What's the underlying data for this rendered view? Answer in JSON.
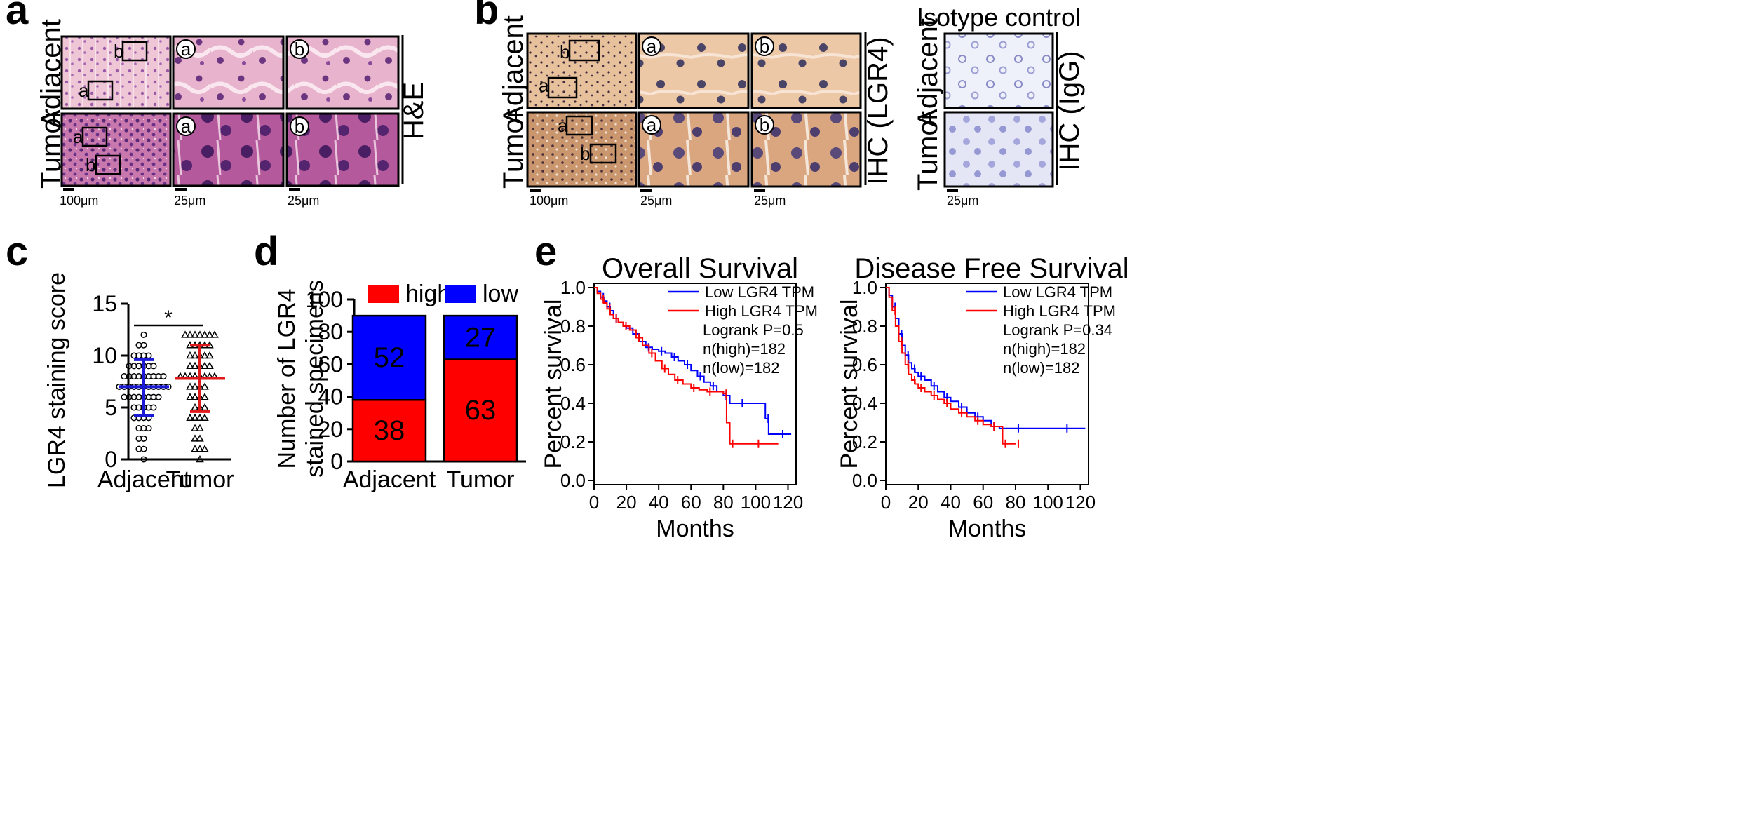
{
  "panels": {
    "a": {
      "label": "a",
      "rows": [
        "Adjacent",
        "Tumor"
      ],
      "stain": "H&E",
      "box_labels": [
        "a",
        "b"
      ],
      "zoom_labels": [
        "a",
        "b"
      ],
      "scale_bars": [
        "100μm",
        "25μm",
        "25μm"
      ],
      "colors": {
        "tissue_light": "#efc6d6",
        "tissue_mid": "#e3a6c2",
        "nuclei": "#7a3a8c",
        "tumor_dark": "#b85a98"
      }
    },
    "b": {
      "label": "b",
      "rows": [
        "Adjacent",
        "Tumor"
      ],
      "stain": "IHC (LGR4)",
      "box_labels": [
        "a",
        "b"
      ],
      "zoom_labels": [
        "a",
        "b"
      ],
      "scale_bars": [
        "100μm",
        "25μm",
        "25μm"
      ],
      "isotype": {
        "title": "Isotype control",
        "rows": [
          "Adjacent",
          "Tumor"
        ],
        "stain": "IHC (IgG)",
        "scale_bar": "25μm"
      },
      "colors": {
        "ihc_light": "#f1d4b9",
        "ihc_dark": "#d6a77c",
        "nuclei": "#4a4466",
        "igg": "#eef0fa"
      }
    },
    "c": {
      "label": "c",
      "significance": "*"
    },
    "d": {
      "label": "d",
      "legend": [
        "high",
        "low"
      ]
    },
    "e": {
      "label": "e"
    }
  },
  "chart_data": [
    {
      "id": "c",
      "type": "scatter",
      "title": "",
      "xlabel": "",
      "ylabel": "LGR4 staining score",
      "categories": [
        "Adjacent",
        "Tumor"
      ],
      "ylim": [
        0,
        15
      ],
      "yticks": [
        0,
        5,
        10,
        15
      ],
      "series": [
        {
          "name": "Adjacent",
          "marker": "circle",
          "color": "#1a1ad6",
          "mean": 7,
          "sd_low": 4.2,
          "sd_high": 9.6,
          "values": [
            0,
            1,
            1,
            2,
            2,
            3,
            3,
            3,
            4,
            4,
            4,
            4,
            5,
            5,
            5,
            5,
            5,
            6,
            6,
            6,
            6,
            6,
            6,
            6,
            6,
            7,
            7,
            7,
            7,
            7,
            7,
            7,
            7,
            7,
            7,
            7,
            8,
            8,
            8,
            8,
            8,
            8,
            8,
            8,
            8,
            9,
            9,
            9,
            9,
            9,
            9,
            10,
            10,
            10,
            10,
            11,
            11,
            12
          ]
        },
        {
          "name": "Tumor",
          "marker": "triangle",
          "color": "#e01a1a",
          "mean": 7.8,
          "sd_low": 4.6,
          "sd_high": 11.0,
          "values": [
            0,
            1,
            1,
            1,
            2,
            2,
            3,
            3,
            4,
            4,
            4,
            4,
            5,
            5,
            5,
            6,
            6,
            6,
            6,
            7,
            7,
            7,
            7,
            8,
            8,
            8,
            8,
            8,
            8,
            8,
            8,
            9,
            9,
            9,
            9,
            9,
            10,
            10,
            10,
            10,
            10,
            11,
            11,
            11,
            11,
            11,
            12,
            12,
            12,
            12,
            12,
            12,
            12
          ]
        }
      ]
    },
    {
      "id": "d",
      "type": "bar",
      "title": "",
      "xlabel": "",
      "ylabel": "Number of LGR4 stained specimens",
      "ylabel_lines": [
        "Number of LGR4",
        "stained specimens"
      ],
      "categories": [
        "Adjacent",
        "Tumor"
      ],
      "ylim": [
        0,
        100
      ],
      "yticks": [
        0,
        20,
        40,
        60,
        80,
        100
      ],
      "series": [
        {
          "name": "high",
          "color": "#ff0000",
          "values": [
            38,
            63
          ]
        },
        {
          "name": "low",
          "color": "#0000ff",
          "values": [
            52,
            27
          ]
        }
      ]
    },
    {
      "id": "e1",
      "type": "line",
      "title": "Overall Survival",
      "xlabel": "Months",
      "ylabel": "Percent survival",
      "xlim": [
        0,
        125
      ],
      "ylim": [
        0,
        1.0
      ],
      "xticks": [
        0,
        20,
        40,
        60,
        80,
        100,
        120
      ],
      "yticks": [
        0.0,
        0.2,
        0.4,
        0.6,
        0.8,
        1.0
      ],
      "legend": [
        "Low LGR4 TPM",
        "High LGR4 TPM"
      ],
      "annotations": [
        "Logrank P=0.5",
        "n(high)=182",
        "n(low)=182"
      ],
      "series": [
        {
          "name": "Low LGR4 TPM",
          "color": "#0000ff",
          "x": [
            0,
            2,
            4,
            6,
            8,
            10,
            12,
            15,
            18,
            20,
            24,
            28,
            32,
            36,
            40,
            44,
            48,
            52,
            56,
            60,
            64,
            68,
            72,
            76,
            80,
            84,
            90,
            100,
            106,
            108,
            115,
            122
          ],
          "y": [
            1.0,
            0.98,
            0.95,
            0.93,
            0.9,
            0.88,
            0.84,
            0.82,
            0.8,
            0.79,
            0.76,
            0.72,
            0.69,
            0.68,
            0.67,
            0.66,
            0.64,
            0.62,
            0.6,
            0.57,
            0.54,
            0.51,
            0.49,
            0.46,
            0.44,
            0.4,
            0.4,
            0.4,
            0.32,
            0.24,
            0.24,
            0.24
          ]
        },
        {
          "name": "High LGR4 TPM",
          "color": "#ff0000",
          "x": [
            0,
            2,
            4,
            6,
            8,
            10,
            12,
            15,
            18,
            22,
            26,
            30,
            34,
            38,
            42,
            46,
            50,
            55,
            60,
            65,
            70,
            75,
            80,
            82,
            84,
            90,
            100,
            114
          ],
          "y": [
            1.0,
            0.97,
            0.94,
            0.92,
            0.89,
            0.86,
            0.84,
            0.82,
            0.8,
            0.78,
            0.74,
            0.7,
            0.66,
            0.62,
            0.58,
            0.55,
            0.52,
            0.5,
            0.48,
            0.47,
            0.46,
            0.46,
            0.45,
            0.3,
            0.19,
            0.19,
            0.19,
            0.19
          ]
        }
      ]
    },
    {
      "id": "e2",
      "type": "line",
      "title": "Disease Free Survival",
      "xlabel": "Months",
      "ylabel": "Percent survival",
      "xlim": [
        0,
        125
      ],
      "ylim": [
        0,
        1.0
      ],
      "xticks": [
        0,
        20,
        40,
        60,
        80,
        100,
        120
      ],
      "yticks": [
        0.0,
        0.2,
        0.4,
        0.6,
        0.8,
        1.0
      ],
      "legend": [
        "Low LGR4 TPM",
        "High LGR4 TPM"
      ],
      "annotations": [
        "Logrank P=0.34",
        "n(high)=182",
        "n(low)=182"
      ],
      "series": [
        {
          "name": "Low LGR4 TPM",
          "color": "#0000ff",
          "x": [
            0,
            2,
            4,
            6,
            8,
            10,
            12,
            14,
            16,
            18,
            20,
            24,
            28,
            32,
            36,
            40,
            45,
            50,
            55,
            60,
            65,
            70,
            80,
            100,
            110,
            123
          ],
          "y": [
            1.0,
            0.96,
            0.9,
            0.84,
            0.76,
            0.7,
            0.65,
            0.61,
            0.58,
            0.56,
            0.54,
            0.52,
            0.49,
            0.46,
            0.43,
            0.41,
            0.38,
            0.35,
            0.33,
            0.31,
            0.28,
            0.27,
            0.27,
            0.27,
            0.27,
            0.27
          ]
        },
        {
          "name": "High LGR4 TPM",
          "color": "#ff0000",
          "x": [
            0,
            2,
            4,
            6,
            8,
            10,
            12,
            14,
            16,
            18,
            20,
            24,
            28,
            32,
            36,
            40,
            45,
            50,
            55,
            60,
            65,
            70,
            72,
            78,
            80
          ],
          "y": [
            1.0,
            0.95,
            0.88,
            0.8,
            0.72,
            0.66,
            0.6,
            0.55,
            0.52,
            0.5,
            0.48,
            0.46,
            0.44,
            0.42,
            0.4,
            0.37,
            0.35,
            0.33,
            0.31,
            0.29,
            0.28,
            0.28,
            0.19,
            0.19,
            0.19
          ]
        }
      ]
    }
  ]
}
